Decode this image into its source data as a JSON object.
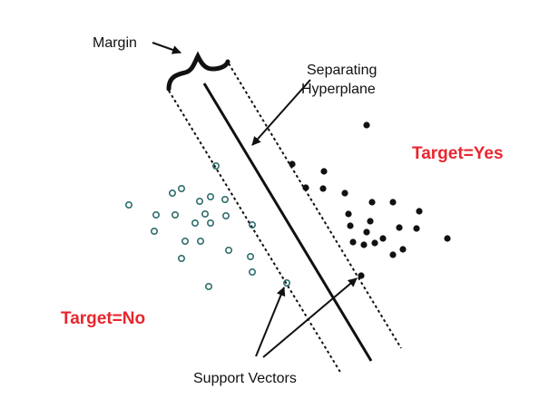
{
  "diagram": {
    "labels": {
      "margin": "Margin",
      "separating_line1": "Separating",
      "separating_line2": "Hyperplane",
      "target_yes": "Target=Yes",
      "target_no": "Target=No",
      "support_vectors": "Support Vectors"
    },
    "colors": {
      "target_label": "#e8262e",
      "ink": "#111111",
      "open_point": "#2f6e6a"
    }
  }
}
